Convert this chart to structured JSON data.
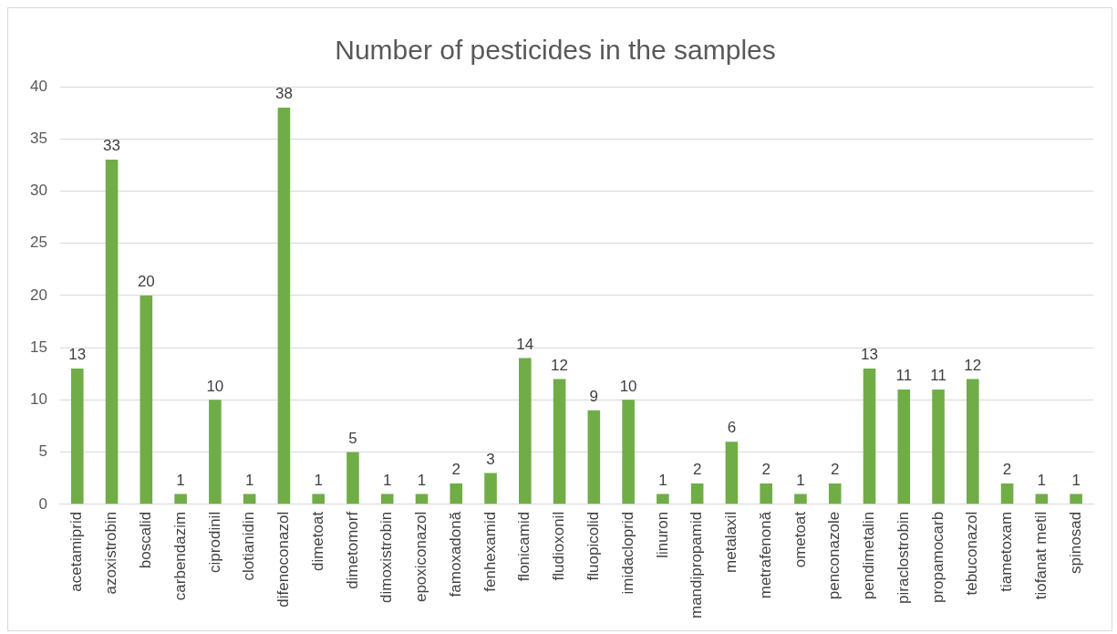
{
  "chart_data": {
    "type": "bar",
    "title": "Number of pesticides in the samples",
    "categories": [
      "acetamiprid",
      "azoxistrobin",
      "boscalid",
      "carbendazim",
      "ciprodinil",
      "clotianidin",
      "difenoconazol",
      "dimetoat",
      "dimetomorf",
      "dimoxistrobin",
      "epoxiconazol",
      "famoxadonă",
      "fenhexamid",
      "flonicamid",
      "fludioxonil",
      "fluopicolid",
      "imidacloprid",
      "linuron",
      "mandipropamid",
      "metalaxil",
      "metrafenonă",
      "ometoat",
      "penconazole",
      "pendimetalin",
      "piraclostrobin",
      "propamocarb",
      "tebuconazol",
      "tiametoxam",
      "tiofanat metil",
      "spinosad"
    ],
    "values": [
      13,
      33,
      20,
      1,
      10,
      1,
      38,
      1,
      5,
      1,
      1,
      2,
      3,
      14,
      12,
      9,
      10,
      1,
      2,
      6,
      2,
      1,
      2,
      13,
      11,
      11,
      12,
      2,
      1,
      1
    ],
    "color": "#70ad47",
    "ylim": [
      0,
      40
    ],
    "yticks": [
      0,
      5,
      10,
      15,
      20,
      25,
      30,
      35,
      40
    ],
    "grid": "y",
    "data_labels": true
  }
}
